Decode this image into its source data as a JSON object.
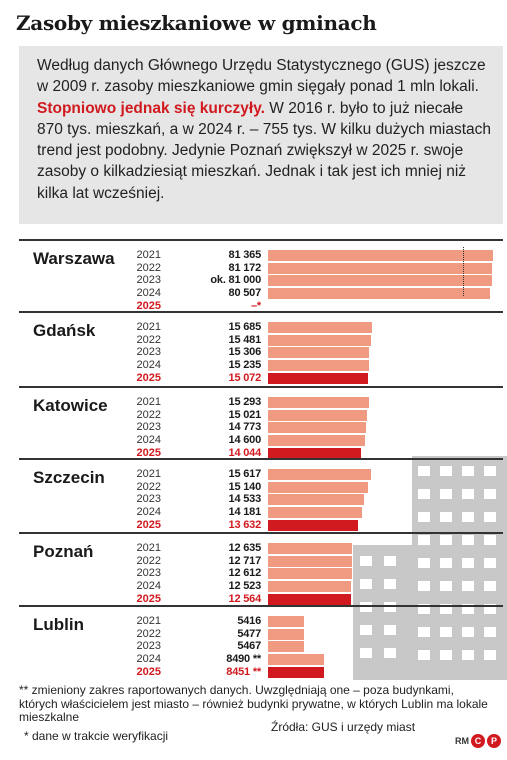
{
  "title": "Zasoby mieszkaniowe w gminach",
  "intro": {
    "text_before": "Według danych Głównego Urzędu Statystycznego (GUS) jeszcze w 2009 r. zasoby mieszkaniowe gmin sięgały ponad 1 mln lokali. ",
    "highlight": "Stopniowo jednak się kurczyły.",
    "text_after": " W 2016 r. było to już niecałe 870 tys. mieszkań, a w 2024 r. – 755 tys. W kilku dużych miastach trend jest podobny. Jedynie Poznań zwiększył w 2025 r. swoje zasoby o kilkadziesiąt mieszkań. Jednak i tak jest ich mniej niż kilka lat wcześniej."
  },
  "chart_data": {
    "type": "bar",
    "orientation": "horizontal",
    "colors": {
      "default": "#f09a82",
      "highlight": "#d11a1f",
      "building": "#c8c8c8"
    },
    "groups": [
      {
        "city": "Warszawa",
        "rows": [
          {
            "year": "2021",
            "label": "81 365",
            "value": 81365
          },
          {
            "year": "2022",
            "label": "81 172",
            "value": 81172
          },
          {
            "year": "2023",
            "label": "ok. 81 000",
            "value": 81000
          },
          {
            "year": "2024",
            "label": "80 507",
            "value": 80507
          },
          {
            "year": "2025",
            "label": "–*",
            "value": null
          }
        ]
      },
      {
        "city": "Gdańsk",
        "rows": [
          {
            "year": "2021",
            "label": "15 685",
            "value": 15685
          },
          {
            "year": "2022",
            "label": "15 481",
            "value": 15481
          },
          {
            "year": "2023",
            "label": "15 306",
            "value": 15306
          },
          {
            "year": "2024",
            "label": "15 235",
            "value": 15235
          },
          {
            "year": "2025",
            "label": "15 072",
            "value": 15072
          }
        ]
      },
      {
        "city": "Katowice",
        "rows": [
          {
            "year": "2021",
            "label": "15 293",
            "value": 15293
          },
          {
            "year": "2022",
            "label": "15 021",
            "value": 15021
          },
          {
            "year": "2023",
            "label": "14 773",
            "value": 14773
          },
          {
            "year": "2024",
            "label": "14 600",
            "value": 14600
          },
          {
            "year": "2025",
            "label": "14 044",
            "value": 14044
          }
        ]
      },
      {
        "city": "Szczecin",
        "rows": [
          {
            "year": "2021",
            "label": "15 617",
            "value": 15617
          },
          {
            "year": "2022",
            "label": "15 140",
            "value": 15140
          },
          {
            "year": "2023",
            "label": "14 533",
            "value": 14533
          },
          {
            "year": "2024",
            "label": "14 181",
            "value": 14181
          },
          {
            "year": "2025",
            "label": "13 632",
            "value": 13632
          }
        ]
      },
      {
        "city": "Poznań",
        "rows": [
          {
            "year": "2021",
            "label": "12 635",
            "value": 12635
          },
          {
            "year": "2022",
            "label": "12 717",
            "value": 12717
          },
          {
            "year": "2023",
            "label": "12 612",
            "value": 12612
          },
          {
            "year": "2024",
            "label": "12 523",
            "value": 12523
          },
          {
            "year": "2025",
            "label": "12 564",
            "value": 12564
          }
        ]
      },
      {
        "city": "Lublin",
        "rows": [
          {
            "year": "2021",
            "label": "5416",
            "value": 5416
          },
          {
            "year": "2022",
            "label": "5477",
            "value": 5477
          },
          {
            "year": "2023",
            "label": "5467",
            "value": 5467
          },
          {
            "year": "2024",
            "label": "8490 **",
            "value": 8490
          },
          {
            "year": "2025",
            "label": "8451 **",
            "value": 8451
          }
        ]
      }
    ],
    "highlight_year": "2025",
    "warszawa_axis_break": true
  },
  "footnotes": {
    "double_star": "** zmieniony zakres raportowanych danych. Uwzględniają one – poza budynkami, których właścicielem jest miasto – również budynki prywatne, w których Lublin ma lokale mieszkalne",
    "single_star": "* dane w trakcie weryfikacji",
    "source": "Źródła: GUS i urzędy miast"
  },
  "logo": {
    "initials": "RM",
    "mark1": "C",
    "mark2": "P"
  }
}
